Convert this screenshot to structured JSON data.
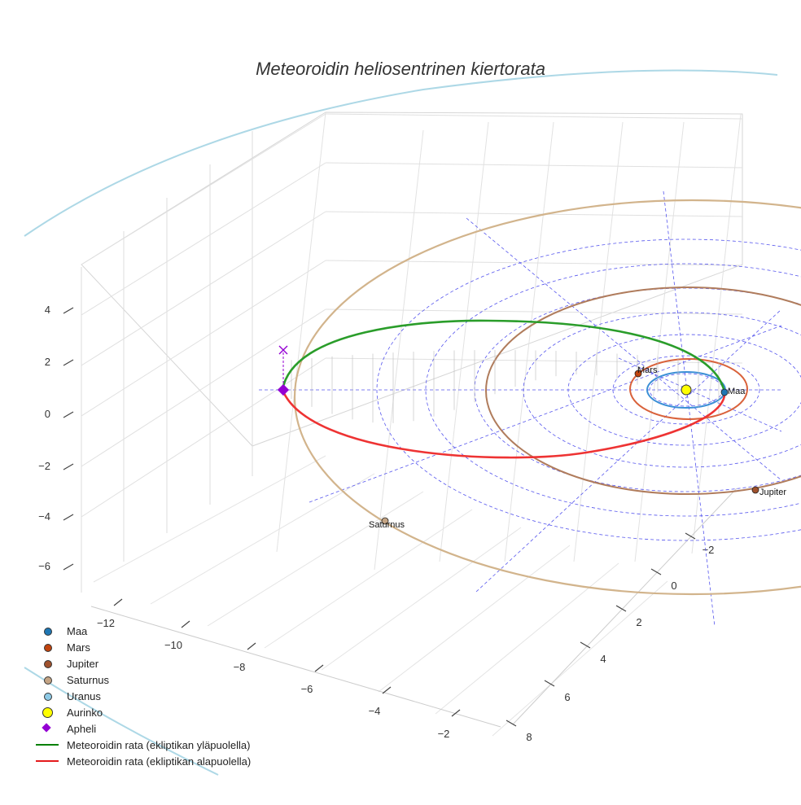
{
  "chart_data": {
    "type": "scatter3d",
    "title": "Meteoroidin heliosentrinen kiertorata",
    "axes": {
      "x": {
        "ticks": [
          -12,
          -10,
          -8,
          -6,
          -4,
          -2
        ]
      },
      "y": {
        "ticks": [
          -2,
          0,
          2,
          4,
          6,
          8
        ]
      },
      "z": {
        "ticks": [
          4,
          2,
          0,
          -2,
          -4,
          -6
        ]
      }
    },
    "labels": {
      "mars": "Mars",
      "earth": "Maa",
      "jupiter": "Jupiter",
      "saturn": "Saturnus"
    },
    "legend": {
      "placement": "bottom-left",
      "items": [
        {
          "label": "Maa",
          "symbol": "dot",
          "color": "#1f77b4"
        },
        {
          "label": "Mars",
          "symbol": "dot",
          "color": "#c1440e"
        },
        {
          "label": "Jupiter",
          "symbol": "dot",
          "color": "#a0522d"
        },
        {
          "label": "Saturnus",
          "symbol": "dot",
          "color": "#c4a484"
        },
        {
          "label": "Uranus",
          "symbol": "dot",
          "color": "#8ecae6"
        },
        {
          "label": "Aurinko",
          "symbol": "bigdot",
          "color": "#ffff00"
        },
        {
          "label": "Apheli",
          "symbol": "diamond",
          "color": "#9400d3"
        },
        {
          "label": "Meteoroidin rata (ekliptikan yläpuolella)",
          "symbol": "line",
          "color": "#008000"
        },
        {
          "label": "Meteoroidin rata (ekliptikan alapuolella)",
          "symbol": "line",
          "color": "#e41a1c"
        }
      ]
    },
    "colors": {
      "earth": "#3b8fd6",
      "mars": "#d9623b",
      "jupiter": "#b07c5c",
      "saturn": "#d2b48c",
      "uranus": "#add8e6",
      "sun": "#ffff00",
      "aphelion": "#9400d3",
      "orbit_above": "#2a9d2a",
      "orbit_below": "#ee3333",
      "grid_lines": "#5555ee"
    }
  }
}
